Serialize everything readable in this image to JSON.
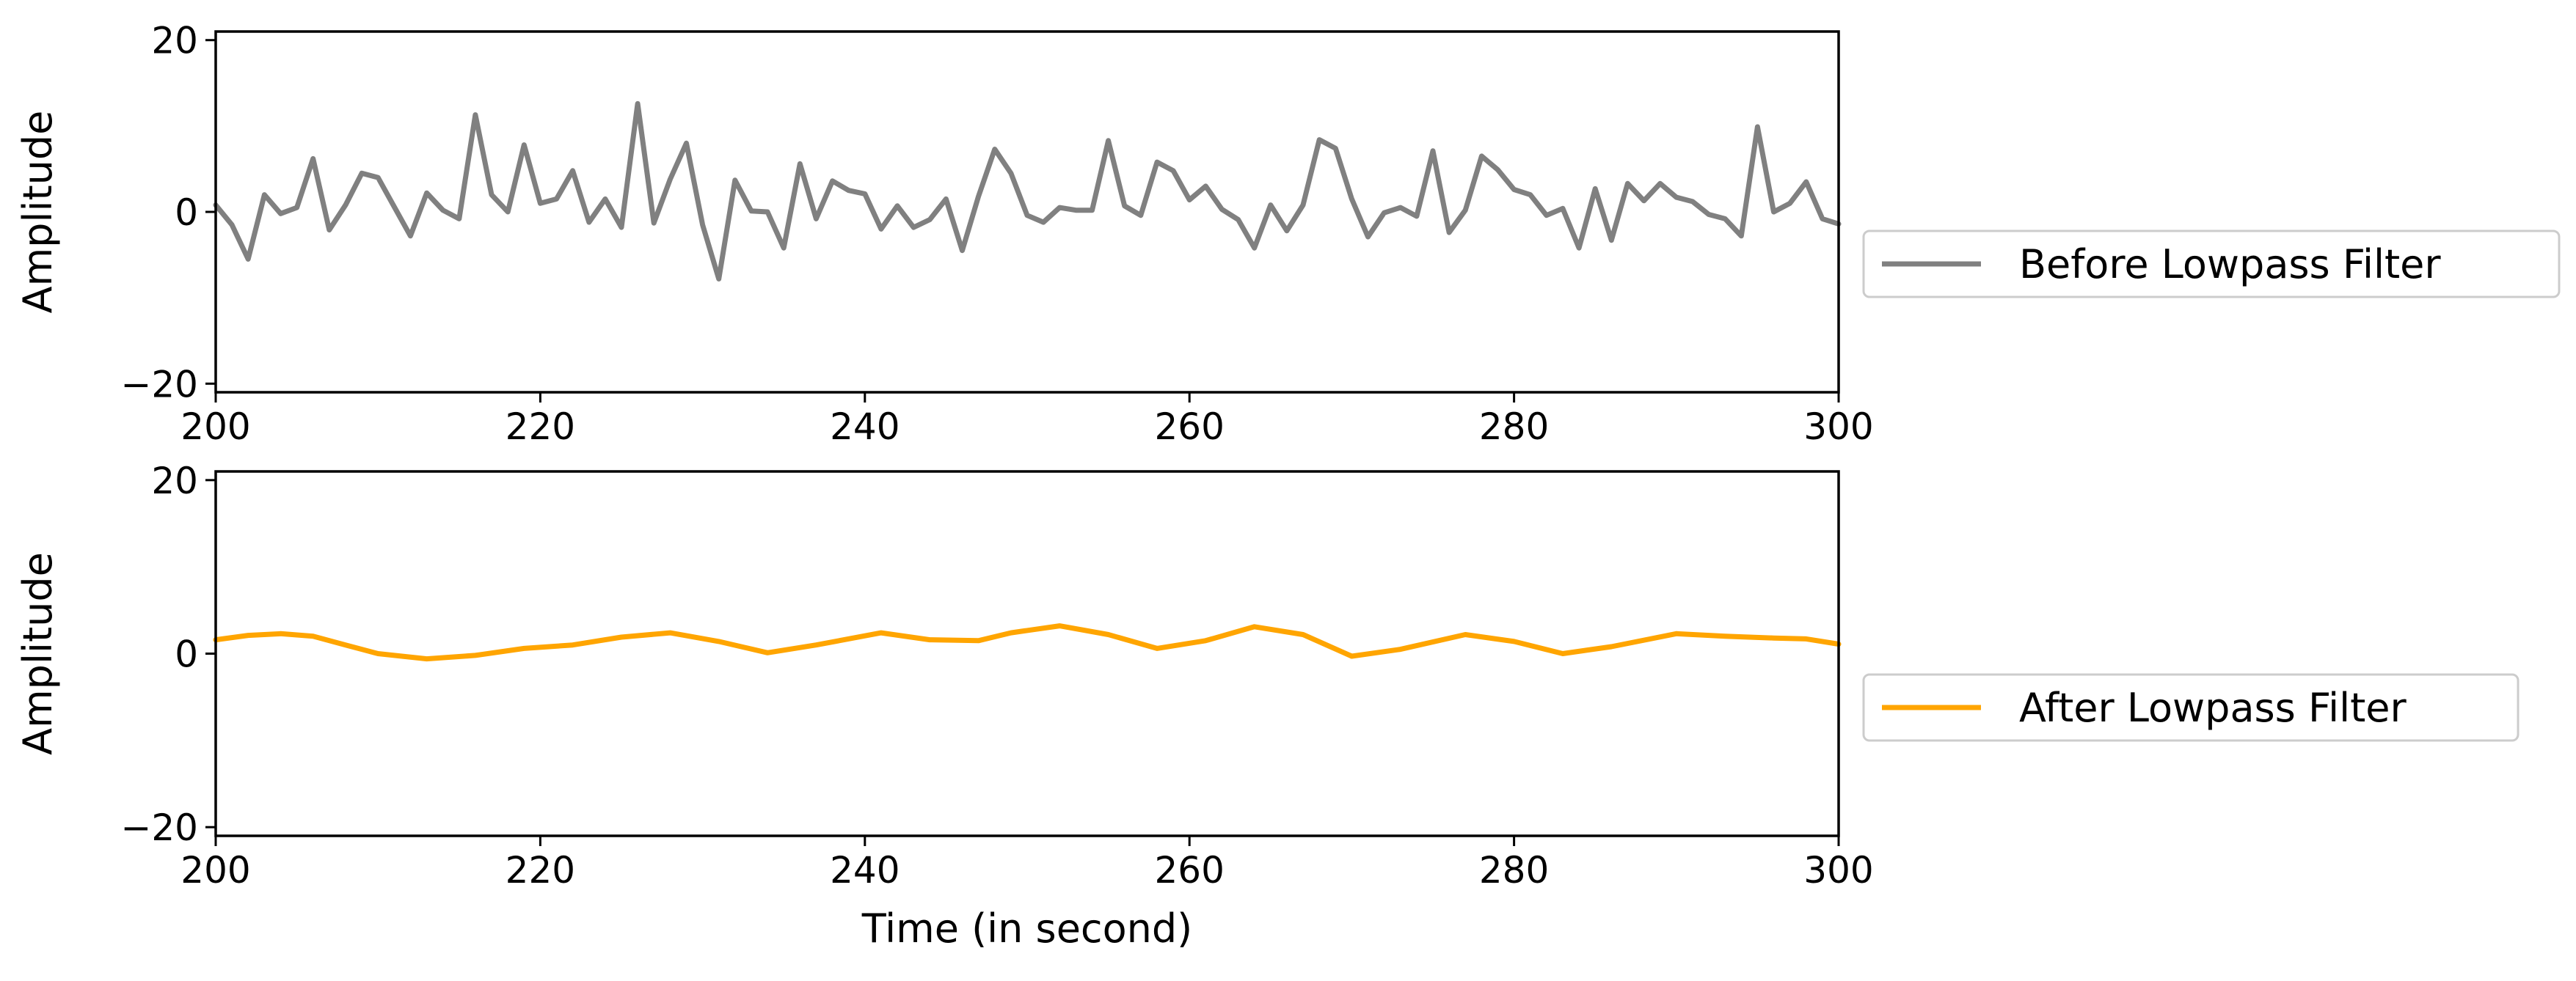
{
  "chart_data": [
    {
      "type": "line",
      "title": "",
      "xlabel": "",
      "ylabel": "Amplitude",
      "xlim": [
        200,
        300
      ],
      "ylim": [
        -21,
        21
      ],
      "x_ticks": [
        "200",
        "220",
        "240",
        "260",
        "280",
        "300"
      ],
      "y_ticks": [
        "20",
        "0",
        "−20"
      ],
      "grid": false,
      "legend_position": "right",
      "series": [
        {
          "name": "Before Lowpass Filter",
          "color": "#808080",
          "x": [
            200,
            201,
            202,
            203,
            204,
            205,
            206,
            207,
            208,
            209,
            210,
            211,
            212,
            213,
            214,
            215,
            216,
            217,
            218,
            219,
            220,
            221,
            222,
            223,
            224,
            225,
            226,
            227,
            228,
            229,
            230,
            231,
            232,
            233,
            234,
            235,
            236,
            237,
            238,
            239,
            240,
            241,
            242,
            243,
            244,
            245,
            246,
            247,
            248,
            249,
            250,
            251,
            252,
            253,
            254,
            255,
            256,
            257,
            258,
            259,
            260,
            261,
            262,
            263,
            264,
            265,
            266,
            267,
            268,
            269,
            270,
            271,
            272,
            273,
            274,
            275,
            276,
            277,
            278,
            279,
            280,
            281,
            282,
            283,
            284,
            285,
            286,
            287,
            288,
            289,
            290,
            291,
            292,
            293,
            294,
            295,
            296,
            297,
            298,
            299,
            300
          ],
          "values": [
            0.8,
            -1.5,
            -5.5,
            2.0,
            -0.2,
            0.5,
            6.2,
            -2.1,
            0.8,
            4.5,
            4.0,
            0.6,
            -2.8,
            2.2,
            0.2,
            -0.8,
            11.3,
            2.0,
            0.0,
            7.8,
            1.0,
            1.5,
            4.8,
            -1.2,
            1.5,
            -1.8,
            12.6,
            -1.3,
            3.8,
            8.0,
            -1.5,
            -7.8,
            3.7,
            0.1,
            0.0,
            -4.2,
            5.6,
            -0.8,
            3.6,
            2.5,
            2.1,
            -2.0,
            0.7,
            -1.8,
            -0.9,
            1.5,
            -4.5,
            1.8,
            7.3,
            4.5,
            -0.4,
            -1.2,
            0.5,
            0.2,
            0.2,
            8.3,
            0.7,
            -0.4,
            5.8,
            4.8,
            1.4,
            3.0,
            0.3,
            -0.9,
            -4.2,
            0.8,
            -2.2,
            0.8,
            8.4,
            7.4,
            1.5,
            -2.9,
            -0.1,
            0.5,
            -0.5,
            7.1,
            -2.4,
            0.2,
            6.5,
            4.9,
            2.6,
            2.0,
            -0.4,
            0.4,
            -4.2,
            2.7,
            -3.3,
            3.3,
            1.3,
            3.3,
            1.7,
            1.2,
            -0.3,
            -0.8,
            -2.8,
            9.9,
            0.0,
            1.0,
            3.5,
            -0.8,
            -1.4
          ]
        }
      ]
    },
    {
      "type": "line",
      "title": "",
      "xlabel": "Time (in second)",
      "ylabel": "Amplitude",
      "xlim": [
        200,
        300
      ],
      "ylim": [
        -21,
        21
      ],
      "x_ticks": [
        "200",
        "220",
        "240",
        "260",
        "280",
        "300"
      ],
      "y_ticks": [
        "20",
        "0",
        "−20"
      ],
      "grid": false,
      "legend_position": "right",
      "series": [
        {
          "name": "After Lowpass Filter",
          "color": "#FFA500",
          "x": [
            200,
            202,
            204,
            206,
            208,
            210,
            213,
            216,
            219,
            222,
            225,
            228,
            231,
            234,
            237,
            241,
            244,
            247,
            249,
            252,
            255,
            258,
            261,
            264,
            267,
            270,
            273,
            277,
            280,
            283,
            286,
            290,
            293,
            296,
            298,
            300
          ],
          "values": [
            1.6,
            2.1,
            2.3,
            2.0,
            1.0,
            0.0,
            -0.6,
            -0.2,
            0.6,
            1.0,
            1.9,
            2.4,
            1.4,
            0.1,
            1.0,
            2.4,
            1.6,
            1.5,
            2.4,
            3.2,
            2.2,
            0.6,
            1.5,
            3.1,
            2.2,
            -0.3,
            0.5,
            2.2,
            1.4,
            0.0,
            0.8,
            2.3,
            2.0,
            1.8,
            1.7,
            1.1
          ]
        }
      ]
    }
  ]
}
